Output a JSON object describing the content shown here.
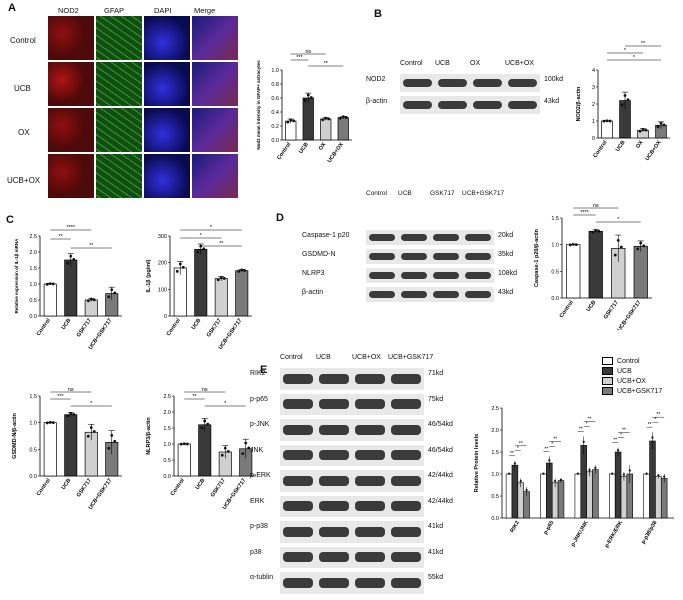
{
  "panels": {
    "A": {
      "letter": "A",
      "col_headers": [
        "NOD2",
        "GFAP",
        "DAPI",
        "Merge"
      ],
      "row_labels": [
        "Control",
        "UCB",
        "OX",
        "UCB+OX"
      ],
      "chart_data": {
        "type": "bar",
        "ylabel": "Nod2 mean intensity in GFAP+ astrocytes",
        "categories": [
          "Control",
          "UCB",
          "OX",
          "UCB+OX"
        ],
        "values": [
          0.27,
          0.6,
          0.3,
          0.32
        ],
        "errors": [
          0.03,
          0.07,
          0.02,
          0.02
        ],
        "ylim": [
          0,
          1.0
        ],
        "yticks": [
          "0.0",
          "0.2",
          "0.4",
          "0.6",
          "0.8",
          "1.0"
        ],
        "colors": [
          "#ffffff",
          "#3a3a3a",
          "#d0d0d0",
          "#7a7a7a"
        ],
        "sig": [
          {
            "label": "ns"
          },
          {
            "label": "***"
          },
          {
            "label": "**"
          }
        ]
      }
    },
    "B": {
      "letter": "B",
      "lanes": [
        "Control",
        "UCB",
        "OX",
        "UCB+OX"
      ],
      "proteins": [
        {
          "name": "NOD2",
          "kd": "100kd"
        },
        {
          "name": "β-actin",
          "kd": "43kd"
        }
      ],
      "chart_data": {
        "type": "bar",
        "ylabel": "NOD2/β-actin",
        "categories": [
          "Control",
          "UCB",
          "OX",
          "UCB+OX"
        ],
        "values": [
          1.0,
          2.2,
          0.45,
          0.75
        ],
        "errors": [
          0.02,
          0.5,
          0.1,
          0.2
        ],
        "ylim": [
          0,
          4
        ],
        "yticks": [
          "0",
          "1",
          "2",
          "3",
          "4"
        ],
        "colors": [
          "#ffffff",
          "#3a3a3a",
          "#d0d0d0",
          "#7a7a7a"
        ],
        "sig": [
          {
            "label": "**"
          },
          {
            "label": "*"
          },
          {
            "label": "*"
          }
        ]
      }
    },
    "C": {
      "letter": "C",
      "chart_data": [
        {
          "type": "bar",
          "ylabel": "Relative expression of IL-1β mRNA",
          "categories": [
            "Control",
            "UCB",
            "GSK717",
            "UCB+GSK717"
          ],
          "values": [
            1.0,
            1.75,
            0.5,
            0.7
          ],
          "errors": [
            0.02,
            0.2,
            0.05,
            0.2
          ],
          "ylim": [
            0,
            2.5
          ],
          "yticks": [
            "0.0",
            "0.5",
            "1.0",
            "1.5",
            "2.0",
            "2.5"
          ],
          "colors": [
            "#ffffff",
            "#3a3a3a",
            "#d0d0d0",
            "#7a7a7a"
          ],
          "sig": [
            {
              "label": "****"
            },
            {
              "label": "**"
            },
            {
              "label": "**"
            }
          ]
        },
        {
          "type": "bar",
          "ylabel": "IL-1β (pg/ml)",
          "categories": [
            "Control",
            "UCB",
            "GSK717",
            "UCB+GSK717"
          ],
          "values": [
            180,
            250,
            140,
            170
          ],
          "errors": [
            25,
            20,
            8,
            5
          ],
          "ylim": [
            0,
            300
          ],
          "yticks": [
            "0",
            "100",
            "200",
            "300"
          ],
          "colors": [
            "#ffffff",
            "#3a3a3a",
            "#d0d0d0",
            "#7a7a7a"
          ],
          "sig": [
            {
              "label": "*"
            },
            {
              "label": "*"
            },
            {
              "label": "**"
            }
          ]
        },
        {
          "type": "bar",
          "ylabel": "GSDMD-N/β-actin",
          "categories": [
            "Control",
            "UCB",
            "GSK717",
            "UCB+GSK717"
          ],
          "values": [
            1.0,
            1.15,
            0.82,
            0.63
          ],
          "errors": [
            0.01,
            0.04,
            0.15,
            0.22
          ],
          "ylim": [
            0,
            1.5
          ],
          "yticks": [
            "0.0",
            "0.5",
            "1.0",
            "1.5"
          ],
          "colors": [
            "#ffffff",
            "#3a3a3a",
            "#d0d0d0",
            "#7a7a7a"
          ],
          "sig": [
            {
              "label": "ns"
            },
            {
              "label": "***"
            },
            {
              "label": "*"
            }
          ]
        },
        {
          "type": "bar",
          "ylabel": "NLRP3/β-actin",
          "categories": [
            "Control",
            "UCB",
            "GSK717",
            "UCB+GSK717"
          ],
          "values": [
            1.0,
            1.6,
            0.75,
            0.85
          ],
          "errors": [
            0.01,
            0.2,
            0.2,
            0.3
          ],
          "ylim": [
            0,
            2.5
          ],
          "yticks": [
            "0.0",
            "0.5",
            "1.0",
            "1.5",
            "2.0",
            "2.5"
          ],
          "colors": [
            "#ffffff",
            "#3a3a3a",
            "#d0d0d0",
            "#7a7a7a"
          ],
          "sig": [
            {
              "label": "ns"
            },
            {
              "label": "**"
            },
            {
              "label": "*"
            }
          ]
        }
      ]
    },
    "D": {
      "letter": "D",
      "lanes": [
        "Control",
        "UCB",
        "GSK717",
        "UCB+GSK717"
      ],
      "proteins": [
        {
          "name": "Caspase-1 p20",
          "kd": "20kd"
        },
        {
          "name": "GSDMD-N",
          "kd": "35kd"
        },
        {
          "name": "NLRP3",
          "kd": "108kd"
        },
        {
          "name": "β-actin",
          "kd": "43kd"
        }
      ],
      "chart_data": {
        "type": "bar",
        "ylabel": "Caspase-1 p20/β-actin",
        "categories": [
          "Control",
          "UCB",
          "GSK717",
          "UCB+GSK717"
        ],
        "values": [
          1.0,
          1.25,
          0.93,
          0.97
        ],
        "errors": [
          0.01,
          0.03,
          0.25,
          0.1
        ],
        "ylim": [
          0,
          1.5
        ],
        "yticks": [
          "0.0",
          "0.5",
          "1.0",
          "1.5"
        ],
        "colors": [
          "#ffffff",
          "#3a3a3a",
          "#d0d0d0",
          "#7a7a7a"
        ],
        "sig": [
          {
            "label": "ns"
          },
          {
            "label": "****"
          },
          {
            "label": "*"
          }
        ]
      }
    },
    "E": {
      "letter": "E",
      "lanes": [
        "Control",
        "UCB",
        "UCB+OX",
        "UCB+GSK717"
      ],
      "proteins": [
        {
          "name": "RIK2",
          "kd": "71kd"
        },
        {
          "name": "p-p65",
          "kd": "75kd"
        },
        {
          "name": "p-JNK",
          "kd": "46/54kd"
        },
        {
          "name": "JNK",
          "kd": "46/54kd"
        },
        {
          "name": "p-ERK",
          "kd": "42/44kd"
        },
        {
          "name": "ERK",
          "kd": "42/44kd"
        },
        {
          "name": "p-p38",
          "kd": "41kd"
        },
        {
          "name": "p38",
          "kd": "41kd"
        },
        {
          "name": "α-tublin",
          "kd": "55kd"
        }
      ],
      "legend": [
        "Control",
        "UCB",
        "UCB+OX",
        "UCB+GSK717"
      ],
      "chart_data": {
        "type": "bar",
        "ylabel": "Relative Protein levels",
        "categories": [
          "RIK2",
          "p-p65",
          "p-JNK/JNK",
          "p-ERK/ERK",
          "p-p38/p38"
        ],
        "series": [
          {
            "name": "Control",
            "values": [
              1.0,
              1.0,
              1.0,
              1.0,
              1.0
            ],
            "errors": [
              0.02,
              0.02,
              0.02,
              0.02,
              0.02
            ]
          },
          {
            "name": "UCB",
            "values": [
              1.2,
              1.25,
              1.65,
              1.5,
              1.75
            ],
            "errors": [
              0.1,
              0.15,
              0.2,
              0.1,
              0.2
            ]
          },
          {
            "name": "UCB+OX",
            "values": [
              0.8,
              0.8,
              1.05,
              0.95,
              0.95
            ],
            "errors": [
              0.1,
              0.1,
              0.1,
              0.1,
              0.05
            ]
          },
          {
            "name": "UCB+GSK717",
            "values": [
              0.6,
              0.85,
              1.1,
              1.0,
              0.9
            ],
            "errors": [
              0.1,
              0.05,
              0.1,
              0.2,
              0.1
            ]
          }
        ],
        "ylim": [
          0,
          2.5
        ],
        "yticks": [
          "0.0",
          "0.5",
          "1.0",
          "1.5",
          "2.0",
          "2.5"
        ],
        "colors": [
          "#ffffff",
          "#3a3a3a",
          "#d0d0d0",
          "#7a7a7a"
        ]
      }
    }
  }
}
